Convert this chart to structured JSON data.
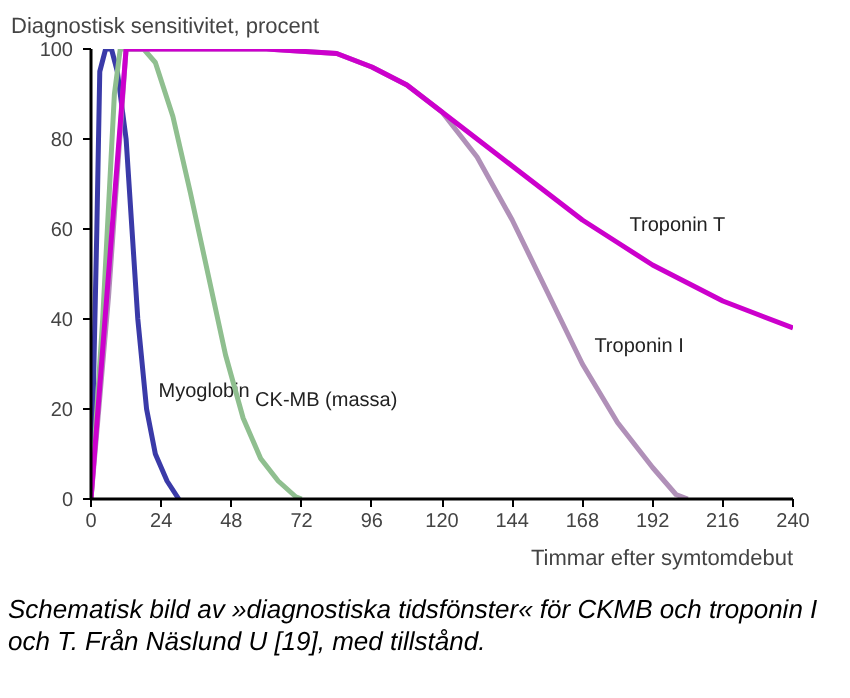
{
  "chart_data": {
    "type": "line",
    "ylabel": "Diagnostisk sensitivitet, procent",
    "xlabel": "Timmar efter symtomdebut",
    "xlim": [
      0,
      240
    ],
    "xticks": [
      0,
      24,
      48,
      72,
      96,
      120,
      144,
      168,
      192,
      216,
      240
    ],
    "ylim": [
      0,
      100
    ],
    "yticks": [
      0,
      20,
      40,
      60,
      80,
      100
    ],
    "grid": false,
    "legend": false,
    "marker": "none",
    "line_style": "solid",
    "series": [
      {
        "name": "Myoglobin",
        "color": "#3a3aa8",
        "x": [
          0,
          2,
          3,
          5,
          7,
          9,
          12,
          14,
          16,
          19,
          22,
          26,
          30
        ],
        "values": [
          0,
          60,
          95,
          100,
          100,
          95,
          80,
          60,
          40,
          20,
          10,
          4,
          0
        ]
      },
      {
        "name": "CK-MB (massa)",
        "color": "#8fbf8f",
        "x": [
          0,
          4,
          8,
          10,
          18,
          22,
          28,
          34,
          40,
          46,
          52,
          58,
          64,
          70,
          72
        ],
        "values": [
          0,
          40,
          90,
          100,
          100,
          97,
          85,
          68,
          50,
          32,
          18,
          9,
          4,
          0.5,
          0
        ]
      },
      {
        "name": "Troponin I",
        "color": "#b090b8",
        "x": [
          0,
          6,
          12,
          60,
          84,
          96,
          108,
          120,
          132,
          144,
          156,
          168,
          180,
          192,
          200,
          204
        ],
        "values": [
          0,
          45,
          100,
          100,
          99,
          96,
          92,
          86,
          76,
          62,
          46,
          30,
          17,
          7,
          1,
          0
        ]
      },
      {
        "name": "Troponin T",
        "color": "#cc00cc",
        "x": [
          0,
          6,
          12,
          60,
          84,
          96,
          108,
          120,
          132,
          144,
          156,
          168,
          180,
          192,
          204,
          216,
          228,
          240
        ],
        "values": [
          0,
          50,
          100,
          100,
          99,
          96,
          92,
          86,
          80,
          74,
          68,
          62,
          57,
          52,
          48,
          44,
          41,
          38
        ]
      }
    ],
    "annotations": [
      "Schematisk bild av »diagnostiska tidsfönster« för CKMB och troponin I och T. Från Näslund U [19], med tillstånd."
    ]
  }
}
